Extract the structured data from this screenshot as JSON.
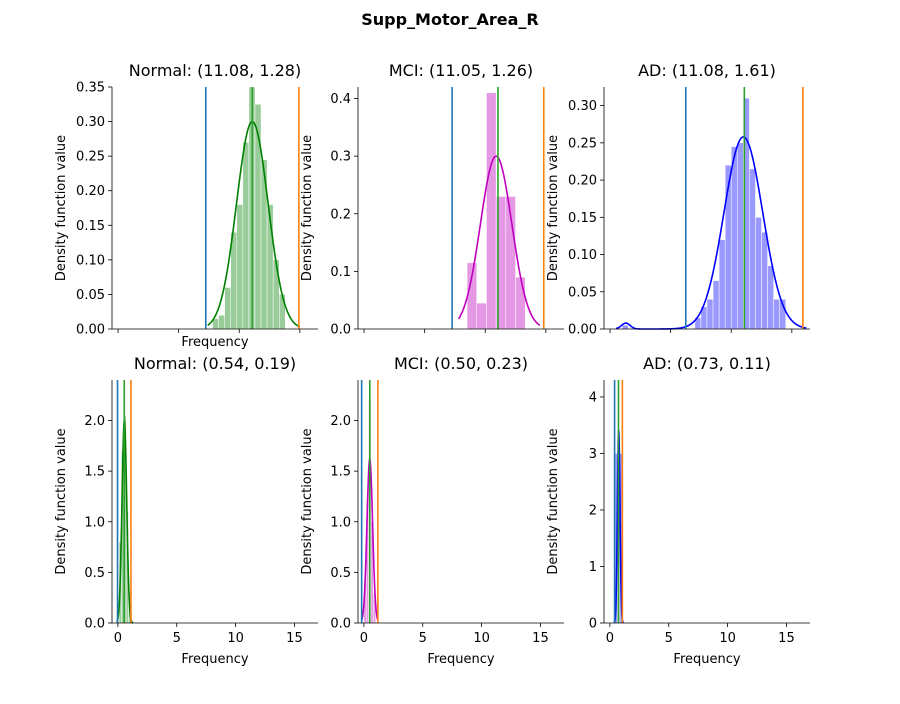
{
  "figure": {
    "title": "Supp_Motor_Area_R"
  },
  "colors": {
    "Normal": "#008000",
    "MCI": "#bf00bf",
    "AD": "#0000ff",
    "line_mean": "#2ca02c",
    "line_low": "#1f77b4",
    "line_high": "#ff7f0e"
  },
  "chart_data": [
    {
      "type": "histogram+kde",
      "title": "Normal: (11.08, 1.28)",
      "group": "Normal",
      "xlabel": "Frequency",
      "ylabel": "Density function value",
      "xlim": [
        -0.5,
        16.5
      ],
      "ylim": [
        0,
        0.35
      ],
      "yticks": [
        0.0,
        0.05,
        0.1,
        0.15,
        0.2,
        0.25,
        0.3,
        0.35
      ],
      "ytick_labels": [
        "0.00",
        "0.05",
        "0.10",
        "0.15",
        "0.20",
        "0.25",
        "0.30",
        "0.35"
      ],
      "xticks": [
        0,
        5,
        10,
        15
      ],
      "show_xtick_labels": false,
      "bins": [
        {
          "x0": 7.8,
          "x1": 8.3,
          "h": 0.015
        },
        {
          "x0": 8.3,
          "x1": 8.8,
          "h": 0.02
        },
        {
          "x0": 8.8,
          "x1": 9.3,
          "h": 0.06
        },
        {
          "x0": 9.3,
          "x1": 9.8,
          "h": 0.14
        },
        {
          "x0": 9.8,
          "x1": 10.3,
          "h": 0.18
        },
        {
          "x0": 10.3,
          "x1": 10.8,
          "h": 0.27
        },
        {
          "x0": 10.8,
          "x1": 11.3,
          "h": 0.35
        },
        {
          "x0": 11.3,
          "x1": 11.8,
          "h": 0.325
        },
        {
          "x0": 11.8,
          "x1": 12.3,
          "h": 0.245
        },
        {
          "x0": 12.3,
          "x1": 12.8,
          "h": 0.18
        },
        {
          "x0": 12.8,
          "x1": 13.3,
          "h": 0.1
        },
        {
          "x0": 13.3,
          "x1": 13.8,
          "h": 0.05
        }
      ],
      "kde": {
        "mu": 11.08,
        "sigma": 1.3,
        "peak": 0.3,
        "x0": 7.4,
        "x1": 15.0
      },
      "vlines": {
        "low": 7.24,
        "mean": 11.08,
        "high": 14.92
      }
    },
    {
      "type": "histogram+kde",
      "title": "MCI: (11.05, 1.26)",
      "group": "MCI",
      "xlabel": "",
      "ylabel": "Density function value",
      "xlim": [
        -0.5,
        16.5
      ],
      "ylim": [
        0,
        0.42
      ],
      "yticks": [
        0.0,
        0.1,
        0.2,
        0.3,
        0.4
      ],
      "ytick_labels": [
        "0.0",
        "0.1",
        "0.2",
        "0.3",
        "0.4"
      ],
      "xticks": [
        0,
        5,
        10,
        15
      ],
      "show_xtick_labels": false,
      "bins": [
        {
          "x0": 8.5,
          "x1": 9.3,
          "h": 0.115
        },
        {
          "x0": 9.3,
          "x1": 10.1,
          "h": 0.045
        },
        {
          "x0": 10.1,
          "x1": 10.9,
          "h": 0.41
        },
        {
          "x0": 10.9,
          "x1": 11.7,
          "h": 0.23
        },
        {
          "x0": 11.7,
          "x1": 12.5,
          "h": 0.23
        },
        {
          "x0": 12.5,
          "x1": 13.3,
          "h": 0.09
        }
      ],
      "kde": {
        "mu": 10.9,
        "sigma": 1.3,
        "peak": 0.3,
        "x0": 7.8,
        "x1": 14.5
      },
      "vlines": {
        "low": 7.27,
        "mean": 11.05,
        "high": 14.83
      }
    },
    {
      "type": "histogram+kde",
      "title": "AD: (11.08, 1.61)",
      "group": "AD",
      "xlabel": "",
      "ylabel": "Density function value",
      "xlim": [
        -0.5,
        16.5
      ],
      "ylim": [
        0,
        0.325
      ],
      "yticks": [
        0.0,
        0.05,
        0.1,
        0.15,
        0.2,
        0.25,
        0.3
      ],
      "ytick_labels": [
        "0.00",
        "0.05",
        "0.10",
        "0.15",
        "0.20",
        "0.25",
        "0.30"
      ],
      "xticks": [
        0,
        5,
        10,
        15
      ],
      "show_xtick_labels": false,
      "bins": [
        {
          "x0": 1.0,
          "x1": 1.5,
          "h": 0.005
        },
        {
          "x0": 7.0,
          "x1": 7.5,
          "h": 0.015
        },
        {
          "x0": 7.5,
          "x1": 8.0,
          "h": 0.03
        },
        {
          "x0": 8.0,
          "x1": 8.5,
          "h": 0.04
        },
        {
          "x0": 8.5,
          "x1": 9.0,
          "h": 0.065
        },
        {
          "x0": 9.0,
          "x1": 9.5,
          "h": 0.12
        },
        {
          "x0": 9.5,
          "x1": 10.0,
          "h": 0.22
        },
        {
          "x0": 10.0,
          "x1": 10.5,
          "h": 0.245
        },
        {
          "x0": 10.5,
          "x1": 11.0,
          "h": 0.25
        },
        {
          "x0": 11.0,
          "x1": 11.5,
          "h": 0.31
        },
        {
          "x0": 11.5,
          "x1": 12.0,
          "h": 0.215
        },
        {
          "x0": 12.0,
          "x1": 12.5,
          "h": 0.15
        },
        {
          "x0": 12.5,
          "x1": 13.0,
          "h": 0.13
        },
        {
          "x0": 13.0,
          "x1": 13.5,
          "h": 0.085
        },
        {
          "x0": 13.5,
          "x1": 14.0,
          "h": 0.04
        },
        {
          "x0": 14.0,
          "x1": 14.5,
          "h": 0.04
        }
      ],
      "kde": {
        "mu": 11.0,
        "sigma": 1.6,
        "peak": 0.258,
        "x0": 0.5,
        "x1": 16.2
      },
      "kde_bump": {
        "mu": 1.3,
        "sigma": 0.35,
        "peak": 0.008
      },
      "vlines": {
        "low": 6.25,
        "mean": 11.08,
        "high": 15.91
      }
    },
    {
      "type": "histogram+kde",
      "title": "Normal: (0.54, 0.19)",
      "group": "Normal",
      "xlabel": "Frequency",
      "ylabel": "Density function value",
      "xlim": [
        -0.5,
        17.0
      ],
      "ylim": [
        0,
        2.4
      ],
      "yticks": [
        0.0,
        0.5,
        1.0,
        1.5,
        2.0
      ],
      "ytick_labels": [
        "0.0",
        "0.5",
        "1.0",
        "1.5",
        "2.0"
      ],
      "xticks": [
        0,
        5,
        10,
        15
      ],
      "show_xtick_labels": true,
      "bins": [
        {
          "x0": 0.1,
          "x1": 0.3,
          "h": 0.8
        },
        {
          "x0": 0.3,
          "x1": 0.5,
          "h": 1.7
        },
        {
          "x0": 0.5,
          "x1": 0.7,
          "h": 2.05
        },
        {
          "x0": 0.7,
          "x1": 0.9,
          "h": 1.1
        },
        {
          "x0": 0.9,
          "x1": 1.1,
          "h": 0.3
        }
      ],
      "kde": {
        "mu": 0.55,
        "sigma": 0.2,
        "peak": 2.0,
        "x0": -0.1,
        "x1": 1.3
      },
      "vlines": {
        "low": -0.03,
        "mean": 0.54,
        "high": 1.11
      }
    },
    {
      "type": "histogram+kde",
      "title": "MCI: (0.50, 0.23)",
      "group": "MCI",
      "xlabel": "Frequency",
      "ylabel": "Density function value",
      "xlim": [
        -0.5,
        17.0
      ],
      "ylim": [
        0,
        2.4
      ],
      "yticks": [
        0.0,
        0.5,
        1.0,
        1.5,
        2.0
      ],
      "ytick_labels": [
        "0.0",
        "0.5",
        "1.0",
        "1.5",
        "2.0"
      ],
      "xticks": [
        0,
        5,
        10,
        15
      ],
      "show_xtick_labels": true,
      "bins": [
        {
          "x0": 0.0,
          "x1": 0.2,
          "h": 0.4
        },
        {
          "x0": 0.2,
          "x1": 0.4,
          "h": 1.2
        },
        {
          "x0": 0.4,
          "x1": 0.6,
          "h": 2.2
        },
        {
          "x0": 0.6,
          "x1": 0.8,
          "h": 1.0
        },
        {
          "x0": 0.8,
          "x1": 1.0,
          "h": 0.3
        }
      ],
      "kde": {
        "mu": 0.5,
        "sigma": 0.24,
        "peak": 1.62,
        "x0": -0.2,
        "x1": 1.2
      },
      "vlines": {
        "low": -0.19,
        "mean": 0.5,
        "high": 1.19
      }
    },
    {
      "type": "histogram+kde",
      "title": "AD: (0.73, 0.11)",
      "group": "AD",
      "xlabel": "Frequency",
      "ylabel": "Density function value",
      "xlim": [
        -0.5,
        17.0
      ],
      "ylim": [
        0,
        4.3
      ],
      "yticks": [
        0,
        1,
        2,
        3,
        4
      ],
      "ytick_labels": [
        "0",
        "1",
        "2",
        "3",
        "4"
      ],
      "xticks": [
        0,
        5,
        10,
        15
      ],
      "show_xtick_labels": true,
      "bins": [
        {
          "x0": 0.45,
          "x1": 0.65,
          "h": 3.0
        },
        {
          "x0": 0.65,
          "x1": 0.85,
          "h": 3.0
        },
        {
          "x0": 0.85,
          "x1": 1.05,
          "h": 3.0
        }
      ],
      "kde": {
        "mu": 0.75,
        "sigma": 0.11,
        "peak": 3.4,
        "x0": 0.35,
        "x1": 1.15
      },
      "vlines": {
        "low": 0.4,
        "mean": 0.73,
        "high": 1.06
      }
    }
  ]
}
